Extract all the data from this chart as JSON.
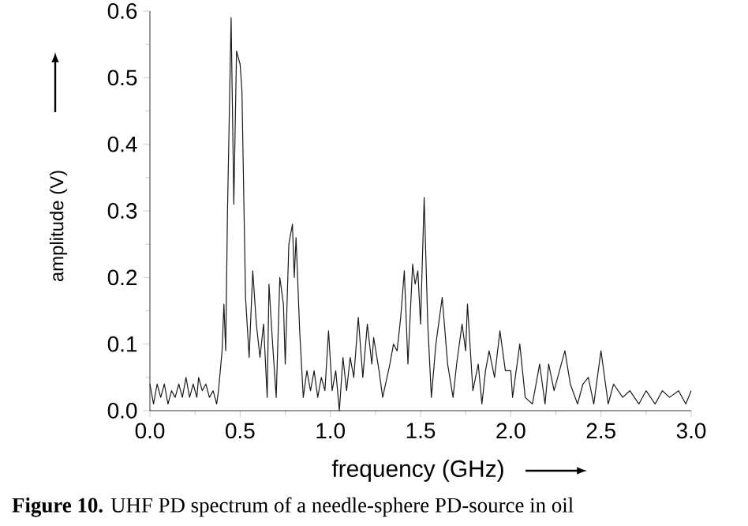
{
  "chart_data": {
    "type": "line",
    "xlabel": "frequency (GHz)",
    "ylabel": "amplitude (V)",
    "annotations": [
      "**Figure 10.** UHF PD spectrum of a needle-sphere PD-source in oil"
    ],
    "xlim": [
      0,
      3
    ],
    "ylim": [
      0,
      0.6
    ],
    "xticks": [
      {
        "value": 0,
        "label": "0.0"
      },
      {
        "value": 0.5,
        "label": "0.5"
      },
      {
        "value": 1,
        "label": "1.0"
      },
      {
        "value": 1.5,
        "label": "1.5"
      },
      {
        "value": 2,
        "label": "2.0"
      },
      {
        "value": 2.5,
        "label": "2.5"
      },
      {
        "value": 3,
        "label": "3.0"
      }
    ],
    "yticks": [
      {
        "value": 0,
        "label": "0.0"
      },
      {
        "value": 0.1,
        "label": "0.1"
      },
      {
        "value": 0.2,
        "label": "0.2"
      },
      {
        "value": 0.3,
        "label": "0.3"
      },
      {
        "value": 0.4,
        "label": "0.4"
      },
      {
        "value": 0.5,
        "label": "0.5"
      },
      {
        "value": 0.6,
        "label": "0.6"
      }
    ],
    "x": [
      0,
      0.02,
      0.04,
      0.06,
      0.08,
      0.1,
      0.12,
      0.14,
      0.16,
      0.18,
      0.2,
      0.22,
      0.24,
      0.26,
      0.27,
      0.29,
      0.31,
      0.33,
      0.35,
      0.37,
      0.38,
      0.4,
      0.41,
      0.42,
      0.43,
      0.45,
      0.465,
      0.48,
      0.5,
      0.51,
      0.53,
      0.55,
      0.57,
      0.59,
      0.61,
      0.63,
      0.65,
      0.66,
      0.68,
      0.7,
      0.72,
      0.74,
      0.75,
      0.77,
      0.79,
      0.8,
      0.81,
      0.83,
      0.85,
      0.87,
      0.89,
      0.91,
      0.93,
      0.95,
      0.97,
      0.99,
      1.01,
      1.03,
      1.05,
      1.07,
      1.09,
      1.11,
      1.13,
      1.155,
      1.18,
      1.205,
      1.23,
      1.24,
      1.27,
      1.29,
      1.33,
      1.35,
      1.37,
      1.39,
      1.41,
      1.43,
      1.456,
      1.47,
      1.485,
      1.5,
      1.52,
      1.54,
      1.56,
      1.585,
      1.62,
      1.65,
      1.68,
      1.7,
      1.73,
      1.75,
      1.76,
      1.79,
      1.82,
      1.84,
      1.86,
      1.88,
      1.91,
      1.94,
      1.97,
      2.0,
      2.01,
      2.05,
      2.08,
      2.12,
      2.16,
      2.19,
      2.21,
      2.24,
      2.27,
      2.3,
      2.33,
      2.37,
      2.4,
      2.43,
      2.46,
      2.5,
      2.54,
      2.57,
      2.62,
      2.66,
      2.71,
      2.75,
      2.8,
      2.84,
      2.88,
      2.93,
      2.97,
      3.0
    ],
    "series": [
      {
        "color": "#1a1a1a",
        "values": [
          0.04,
          0.01,
          0.04,
          0.02,
          0.04,
          0.01,
          0.03,
          0.02,
          0.04,
          0.02,
          0.05,
          0.02,
          0.04,
          0.02,
          0.05,
          0.03,
          0.04,
          0.02,
          0.03,
          0.01,
          0.03,
          0.09,
          0.16,
          0.09,
          0.3,
          0.59,
          0.31,
          0.54,
          0.52,
          0.48,
          0.17,
          0.08,
          0.21,
          0.13,
          0.08,
          0.13,
          0.02,
          0.19,
          0.1,
          0.02,
          0.2,
          0.16,
          0.07,
          0.25,
          0.28,
          0.2,
          0.26,
          0.12,
          0.02,
          0.06,
          0.03,
          0.06,
          0.02,
          0.05,
          0.03,
          0.12,
          0.03,
          0.06,
          0.0,
          0.08,
          0.03,
          0.08,
          0.05,
          0.14,
          0.05,
          0.13,
          0.07,
          0.11,
          0.06,
          0.02,
          0.07,
          0.1,
          0.09,
          0.14,
          0.21,
          0.07,
          0.22,
          0.19,
          0.21,
          0.13,
          0.32,
          0.13,
          0.02,
          0.1,
          0.17,
          0.07,
          0.02,
          0.07,
          0.13,
          0.09,
          0.16,
          0.03,
          0.07,
          0.01,
          0.06,
          0.09,
          0.05,
          0.12,
          0.06,
          0.06,
          0.02,
          0.1,
          0.02,
          0.01,
          0.07,
          0.01,
          0.07,
          0.03,
          0.06,
          0.09,
          0.04,
          0.01,
          0.04,
          0.05,
          0.01,
          0.09,
          0.01,
          0.04,
          0.02,
          0.03,
          0.01,
          0.03,
          0.01,
          0.03,
          0.02,
          0.03,
          0.01,
          0.03
        ]
      }
    ]
  }
}
